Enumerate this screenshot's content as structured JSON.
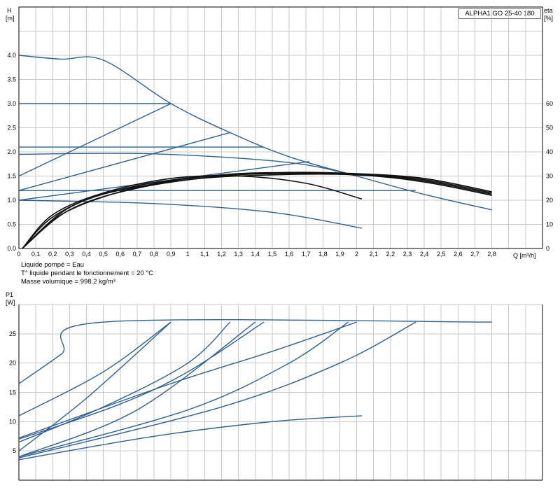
{
  "header": {
    "model_label": "ALPHA1 GO 25-40 180"
  },
  "notes": [
    "Liquide pompé = Eau",
    "T° liquide pendant le fonctionnement = 20 °C",
    "Masse volumique = 998.2 kg/m³"
  ],
  "chart_data": [
    {
      "type": "line",
      "title": "",
      "xlabel": "Q [m³/h]",
      "ylabel": "H\n[m]",
      "y2label": "eta\n[%]",
      "xlim": [
        0,
        3.1
      ],
      "ylim": [
        0,
        5.0
      ],
      "y2lim": [
        0,
        100
      ],
      "x_ticks": [
        "0",
        "0,1",
        "0,2",
        "0,3",
        "0,4",
        "0,5",
        "0,6",
        "0,7",
        "0,8",
        "0,9",
        "1",
        "1,1",
        "1,2",
        "1,3",
        "1,4",
        "1,5",
        "1,6",
        "1,7",
        "1,8",
        "1,9",
        "2",
        "2,1",
        "2,2",
        "2,3",
        "2,4",
        "2,5",
        "2,6",
        "2,7",
        "2,8"
      ],
      "y_ticks": [
        "0.0",
        "0.5",
        "1.0",
        "1.5",
        "2.0",
        "2.5",
        "3.0",
        "3.5",
        "4.0"
      ],
      "y2_ticks": [
        "0",
        "10",
        "20",
        "30",
        "40",
        "50",
        "60"
      ],
      "grid": true,
      "series": [
        {
          "kind": "head",
          "x": [
            0,
            0.25,
            0.5,
            0.9,
            1.25,
            1.6,
            2.0,
            2.4,
            2.8
          ],
          "y": [
            4.0,
            3.92,
            3.9,
            3.0,
            2.4,
            1.9,
            1.5,
            1.12,
            0.8
          ]
        },
        {
          "kind": "head",
          "x": [
            0,
            0.9
          ],
          "y": [
            3.0,
            3.0
          ]
        },
        {
          "kind": "head",
          "x": [
            0,
            0.9
          ],
          "y": [
            1.5,
            3.0
          ]
        },
        {
          "kind": "head",
          "x": [
            0,
            1.25
          ],
          "y": [
            1.2,
            2.4
          ]
        },
        {
          "kind": "head",
          "x": [
            0,
            1.72
          ],
          "y": [
            1.0,
            1.8
          ]
        },
        {
          "kind": "head",
          "x": [
            0,
            1.45
          ],
          "y": [
            2.1,
            2.1
          ]
        },
        {
          "kind": "head",
          "x": [
            0,
            2.35
          ],
          "y": [
            1.2,
            1.2
          ]
        },
        {
          "kind": "head",
          "x": [
            0,
            0.8,
            1.6,
            2.0
          ],
          "y": [
            1.95,
            1.96,
            1.78,
            1.5
          ]
        },
        {
          "kind": "head",
          "x": [
            0,
            0.8,
            1.5,
            2.03
          ],
          "y": [
            1.0,
            0.93,
            0.75,
            0.42
          ]
        },
        {
          "kind": "efficiency",
          "x": [
            0.02,
            0.2,
            0.5,
            0.9,
            1.3,
            1.7,
            2.03
          ],
          "y": [
            0,
            14,
            23,
            29,
            30,
            27,
            20.5
          ]
        },
        {
          "kind": "efficiency",
          "x": [
            0.02,
            0.2,
            0.5,
            1.0,
            1.5,
            2.0,
            2.4,
            2.8
          ],
          "y": [
            0,
            13,
            22.5,
            28.5,
            30.5,
            30.5,
            27.5,
            22
          ]
        },
        {
          "kind": "efficiency",
          "x": [
            0.02,
            0.25,
            0.6,
            1.0,
            1.5,
            2.0,
            2.4,
            2.8
          ],
          "y": [
            0,
            14,
            23.5,
            29,
            31,
            30.5,
            28,
            22.5
          ]
        },
        {
          "kind": "efficiency",
          "x": [
            0.02,
            0.3,
            0.7,
            1.2,
            1.6,
            2.0,
            2.4,
            2.8
          ],
          "y": [
            0,
            16,
            25,
            30,
            31.2,
            30.8,
            28.5,
            23
          ]
        },
        {
          "kind": "efficiency",
          "x": [
            0.02,
            0.3,
            0.7,
            1.2,
            1.6,
            2.0,
            2.4,
            2.8
          ],
          "y": [
            0,
            17,
            26,
            30.5,
            31.5,
            31,
            29,
            23.5
          ]
        }
      ]
    },
    {
      "type": "line",
      "title": "",
      "xlabel": "",
      "ylabel": "P1\n[W]",
      "xlim": [
        0,
        3.1
      ],
      "ylim": [
        0,
        30
      ],
      "y_ticks": [
        "5",
        "10",
        "15",
        "20",
        "25"
      ],
      "grid": true,
      "series": [
        {
          "x": [
            0,
            0.25,
            0.5,
            2.8
          ],
          "y": [
            16.5,
            21.5,
            27,
            27
          ]
        },
        {
          "x": [
            0,
            0.5,
            0.9
          ],
          "y": [
            11,
            18.5,
            27
          ]
        },
        {
          "x": [
            0,
            0.4,
            0.9
          ],
          "y": [
            5,
            14,
            27
          ]
        },
        {
          "x": [
            0,
            0.5,
            1.0,
            1.25
          ],
          "y": [
            6.5,
            12.5,
            20,
            27
          ]
        },
        {
          "x": [
            0,
            0.7,
            1.4
          ],
          "y": [
            4,
            12,
            27
          ]
        },
        {
          "x": [
            0,
            0.6,
            1.0,
            1.45
          ],
          "y": [
            7,
            13,
            18.5,
            27
          ]
        },
        {
          "x": [
            0,
            1.0,
            1.6,
            1.95
          ],
          "y": [
            4,
            12,
            20,
            27
          ]
        },
        {
          "x": [
            0,
            0.9,
            1.5,
            2.0
          ],
          "y": [
            7.2,
            16.5,
            22,
            27
          ]
        },
        {
          "x": [
            0,
            1.2,
            1.9,
            2.35
          ],
          "y": [
            3.8,
            12.5,
            20,
            27
          ]
        },
        {
          "x": [
            0,
            0.8,
            1.5,
            2.03
          ],
          "y": [
            3.5,
            7.5,
            10,
            11
          ]
        }
      ]
    }
  ]
}
